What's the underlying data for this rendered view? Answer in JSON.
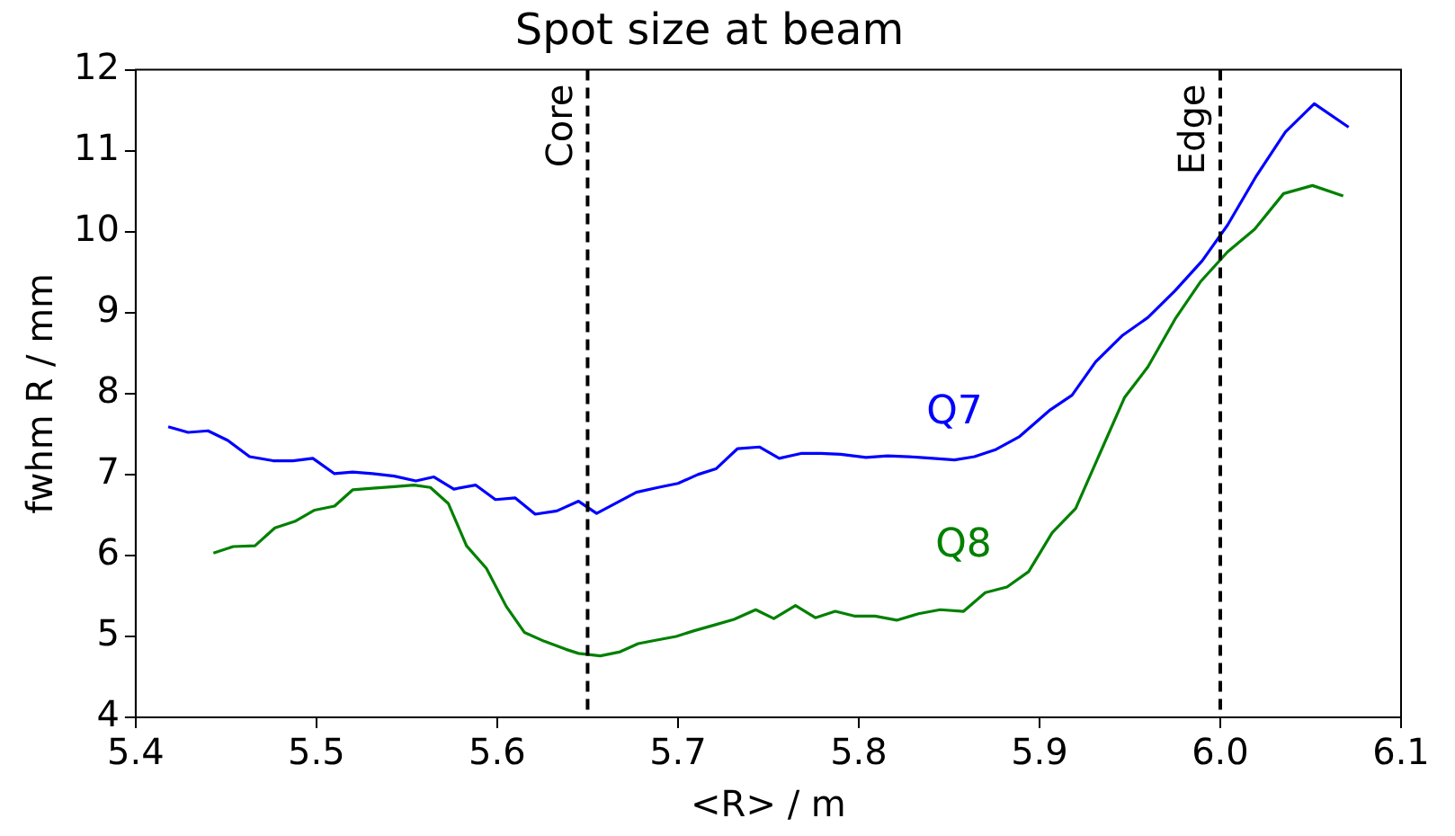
{
  "chart_data": {
    "type": "line",
    "title": "Spot size at beam",
    "xlabel": "<R> / m",
    "ylabel": "fwhm R / mm",
    "xlim": [
      5.4,
      6.1
    ],
    "xticks": [
      5.4,
      5.5,
      5.6,
      5.7,
      5.8,
      5.9,
      {
        "value": 6,
        "label": "6.0"
      },
      6.1
    ],
    "ylim": [
      4,
      12
    ],
    "yticks": [
      4,
      5,
      6,
      7,
      8,
      9,
      10,
      11,
      12
    ],
    "grid": false,
    "legend": false,
    "marker": "none",
    "line_style": "solid",
    "series": [
      {
        "name": "Q7",
        "color": "#0000ff",
        "x": [
          5.418,
          5.429,
          5.44,
          5.451,
          5.463,
          5.476,
          5.487,
          5.498,
          5.51,
          5.52,
          5.531,
          5.543,
          5.555,
          5.565,
          5.576,
          5.588,
          5.599,
          5.61,
          5.621,
          5.633,
          5.645,
          5.655,
          5.666,
          5.677,
          5.689,
          5.7,
          5.711,
          5.721,
          5.733,
          5.745,
          5.756,
          5.768,
          5.779,
          5.79,
          5.804,
          5.816,
          5.828,
          5.841,
          5.853,
          5.864,
          5.876,
          5.889,
          5.906,
          5.918,
          5.931,
          5.946,
          5.96,
          5.975,
          5.99,
          6.004,
          6.02,
          6.036,
          6.052,
          6.071
        ],
        "values": [
          7.59,
          7.52,
          7.54,
          7.42,
          7.22,
          7.17,
          7.17,
          7.2,
          7.01,
          7.03,
          7.01,
          6.98,
          6.92,
          6.97,
          6.82,
          6.87,
          6.69,
          6.71,
          6.51,
          6.55,
          6.67,
          6.52,
          6.65,
          6.78,
          6.84,
          6.89,
          7.0,
          7.07,
          7.32,
          7.34,
          7.2,
          7.26,
          7.26,
          7.25,
          7.21,
          7.23,
          7.22,
          7.2,
          7.18,
          7.22,
          7.31,
          7.47,
          7.8,
          7.98,
          8.39,
          8.72,
          8.94,
          9.27,
          9.64,
          10.08,
          10.69,
          11.23,
          11.58,
          11.29
        ]
      },
      {
        "name": "Q8",
        "color": "#008000",
        "x": [
          5.443,
          5.454,
          5.466,
          5.477,
          5.488,
          5.499,
          5.51,
          5.52,
          5.531,
          5.543,
          5.554,
          5.563,
          5.573,
          5.583,
          5.594,
          5.605,
          5.615,
          5.626,
          5.638,
          5.645,
          5.657,
          5.668,
          5.678,
          5.687,
          5.699,
          5.709,
          5.72,
          5.731,
          5.743,
          5.753,
          5.765,
          5.776,
          5.787,
          5.798,
          5.809,
          5.821,
          5.833,
          5.845,
          5.858,
          5.87,
          5.882,
          5.894,
          5.907,
          5.92,
          5.933,
          5.947,
          5.96,
          5.975,
          5.989,
          6.004,
          6.019,
          6.035,
          6.051,
          6.068
        ],
        "values": [
          6.03,
          6.11,
          6.12,
          6.34,
          6.42,
          6.56,
          6.61,
          6.81,
          6.83,
          6.85,
          6.87,
          6.84,
          6.64,
          6.12,
          5.84,
          5.37,
          5.05,
          4.94,
          4.84,
          4.79,
          4.76,
          4.81,
          4.91,
          4.95,
          5.0,
          5.07,
          5.14,
          5.21,
          5.33,
          5.22,
          5.38,
          5.23,
          5.31,
          5.25,
          5.25,
          5.2,
          5.28,
          5.33,
          5.31,
          5.54,
          5.61,
          5.8,
          6.28,
          6.58,
          7.24,
          7.95,
          8.33,
          8.92,
          9.38,
          9.75,
          10.03,
          10.47,
          10.57,
          10.44
        ]
      }
    ],
    "ref_lines": [
      {
        "axis": "x",
        "value": 5.65,
        "label": "Core",
        "color": "#000000",
        "line_style": "dashed"
      },
      {
        "axis": "x",
        "value": 6.0,
        "label": "Edge",
        "color": "#000000",
        "line_style": "dashed"
      }
    ]
  }
}
